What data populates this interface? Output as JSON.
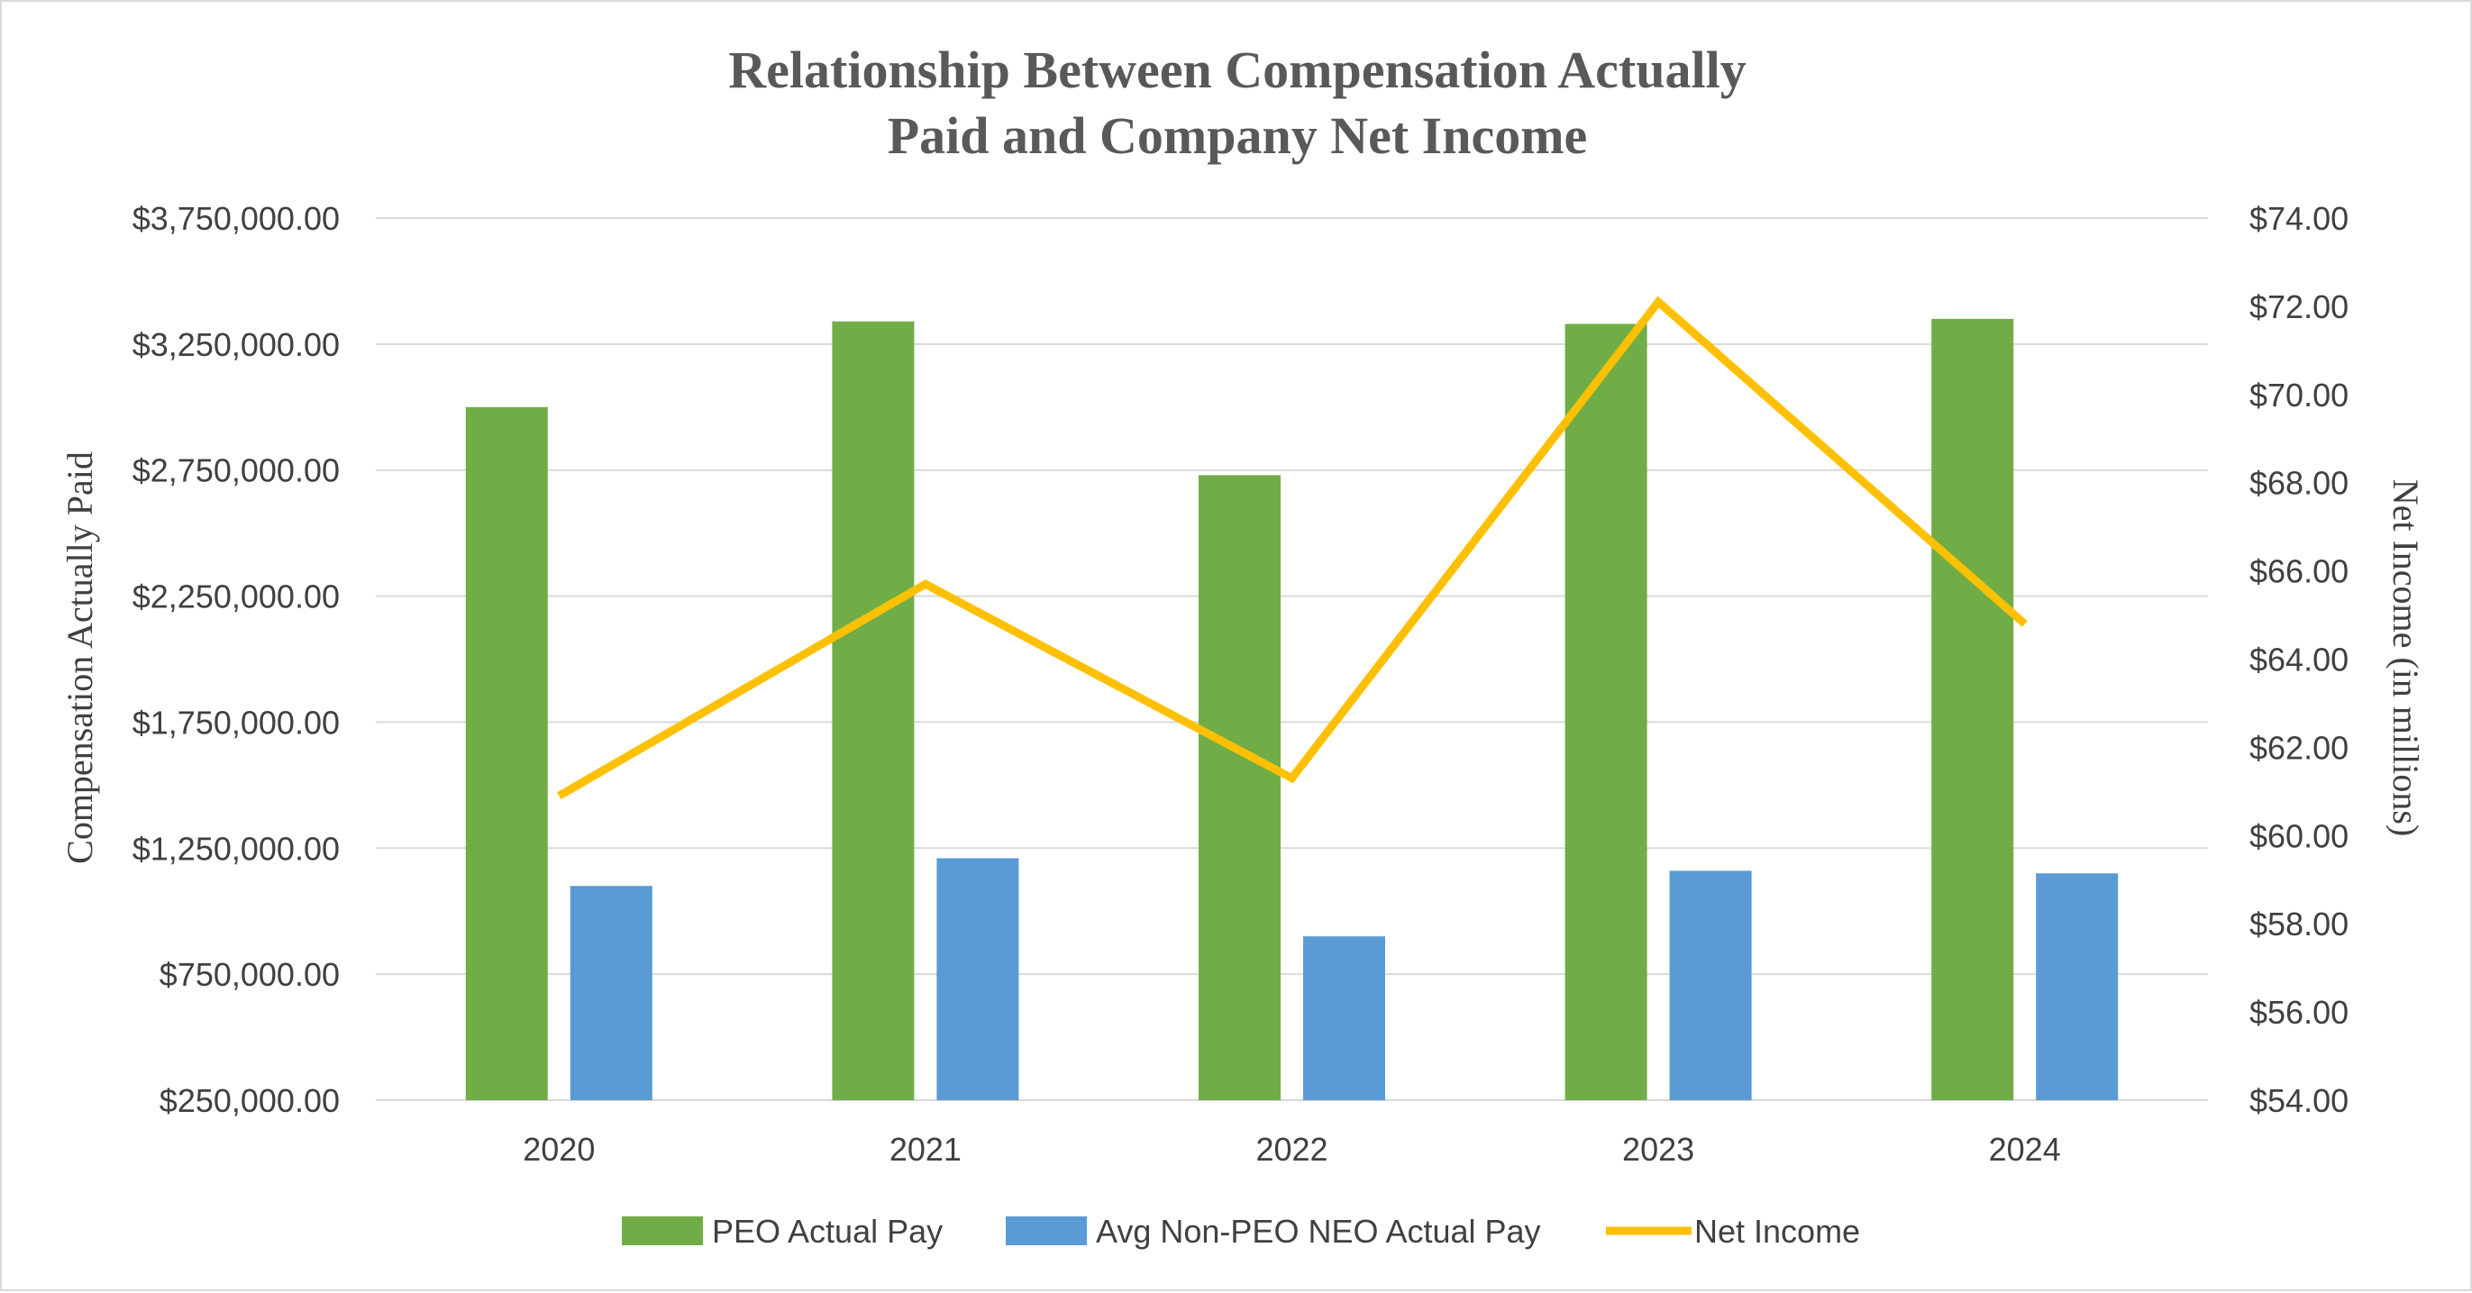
{
  "chart_data": {
    "type": "bar",
    "title_lines": [
      "Relationship Between Compensation Actually",
      "Paid and Company Net Income"
    ],
    "ylabel_left": "Compensation  Actually Paid",
    "ylabel_right": "Net Income  (in millions)",
    "categories": [
      "2020",
      "2021",
      "2022",
      "2023",
      "2024"
    ],
    "ylim_left": [
      250000,
      3750000
    ],
    "ylim_right": [
      54,
      74
    ],
    "left_ticks": [
      "$250,000.00",
      "$750,000.00",
      "$1,250,000.00",
      "$1,750,000.00",
      "$2,250,000.00",
      "$2,750,000.00",
      "$3,250,000.00",
      "$3,750,000.00"
    ],
    "left_tick_values": [
      250000,
      750000,
      1250000,
      1750000,
      2250000,
      2750000,
      3250000,
      3750000
    ],
    "right_ticks": [
      "$54.00",
      "$56.00",
      "$58.00",
      "$60.00",
      "$62.00",
      "$64.00",
      "$66.00",
      "$68.00",
      "$70.00",
      "$72.00",
      "$74.00"
    ],
    "right_tick_values": [
      54,
      56,
      58,
      60,
      62,
      64,
      66,
      68,
      70,
      72,
      74
    ],
    "grid": true,
    "legend_position": "bottom",
    "series": [
      {
        "name": "PEO Actual Pay",
        "type": "bar",
        "axis": "left",
        "color": "#70ad47",
        "values": [
          3000000,
          3340000,
          2730000,
          3330000,
          3350000
        ]
      },
      {
        "name": "Avg Non-PEO NEO Actual Pay",
        "type": "bar",
        "axis": "left",
        "color": "#5b9bd5",
        "values": [
          1100000,
          1210000,
          900000,
          1160000,
          1150000
        ]
      },
      {
        "name": "Net Income",
        "type": "line",
        "axis": "right",
        "color": "#ffc000",
        "values": [
          60.9,
          65.7,
          61.3,
          72.1,
          64.8
        ]
      }
    ]
  }
}
